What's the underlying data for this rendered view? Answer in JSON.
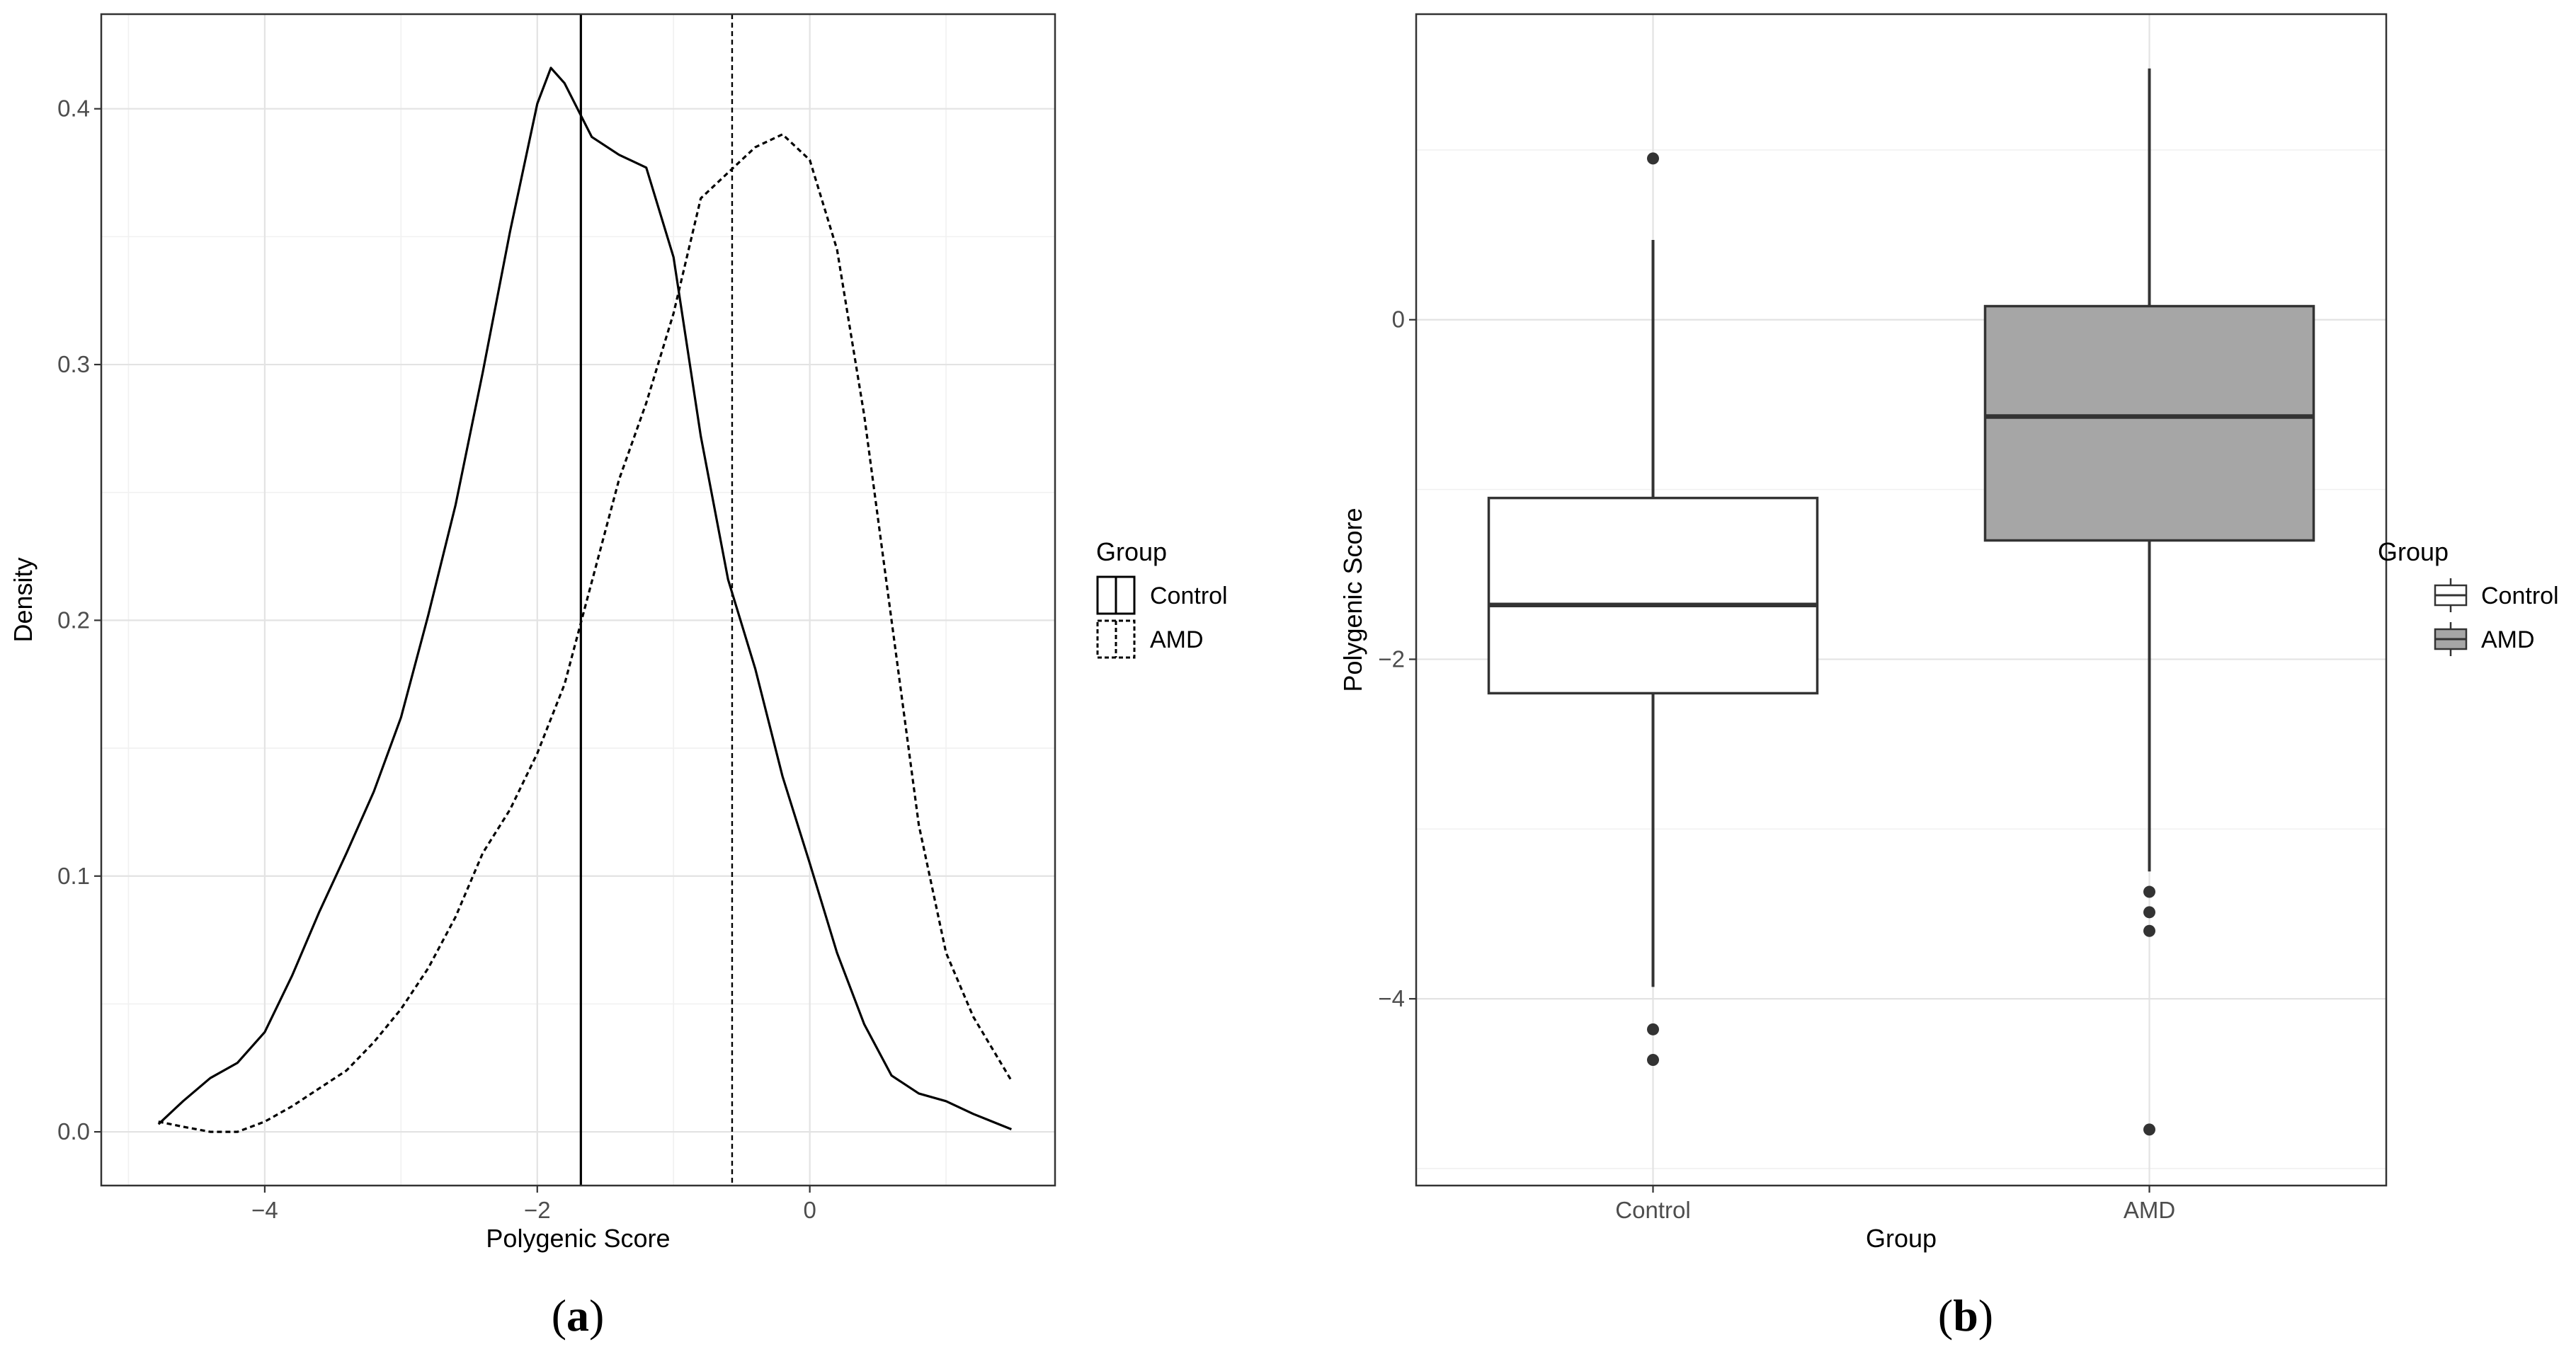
{
  "chart_data": [
    {
      "panel": "a",
      "type": "line",
      "caption_label": "a",
      "caption_open": "(",
      "caption_close": ")",
      "xlabel": "Polygenic Score",
      "ylabel": "Density",
      "xlim": [
        -5.2,
        1.8
      ],
      "ylim": [
        -0.021,
        0.437
      ],
      "x_ticks": [
        -4,
        -2,
        0
      ],
      "x_tick_labels": [
        "−4",
        "−2",
        "0"
      ],
      "y_ticks": [
        0.0,
        0.1,
        0.2,
        0.3,
        0.4
      ],
      "y_tick_labels": [
        "0.0",
        "0.1",
        "0.2",
        "0.3",
        "0.4"
      ],
      "grid": true,
      "legend": {
        "title": "Group",
        "placement": "right",
        "entries": [
          "Control",
          "AMD"
        ]
      },
      "series": [
        {
          "name": "Control",
          "linestyle": "solid",
          "mean": -1.68,
          "x": [
            -4.78,
            -4.6,
            -4.4,
            -4.2,
            -4.0,
            -3.8,
            -3.6,
            -3.4,
            -3.2,
            -3.0,
            -2.8,
            -2.6,
            -2.4,
            -2.2,
            -2.0,
            -1.9,
            -1.8,
            -1.6,
            -1.4,
            -1.2,
            -1.0,
            -0.8,
            -0.6,
            -0.4,
            -0.2,
            0.0,
            0.2,
            0.4,
            0.6,
            0.8,
            1.0,
            1.2,
            1.48
          ],
          "values": [
            0.003,
            0.012,
            0.021,
            0.027,
            0.039,
            0.061,
            0.086,
            0.109,
            0.133,
            0.162,
            0.202,
            0.245,
            0.297,
            0.352,
            0.402,
            0.416,
            0.41,
            0.389,
            0.382,
            0.377,
            0.342,
            0.272,
            0.216,
            0.181,
            0.139,
            0.105,
            0.07,
            0.042,
            0.022,
            0.015,
            0.012,
            0.007,
            0.001
          ]
        },
        {
          "name": "AMD",
          "linestyle": "dashed",
          "mean": -0.57,
          "x": [
            -4.78,
            -4.6,
            -4.4,
            -4.2,
            -4.0,
            -3.8,
            -3.6,
            -3.4,
            -3.2,
            -3.0,
            -2.8,
            -2.6,
            -2.4,
            -2.2,
            -2.0,
            -1.8,
            -1.6,
            -1.4,
            -1.2,
            -1.0,
            -0.8,
            -0.6,
            -0.4,
            -0.2,
            0.0,
            0.2,
            0.4,
            0.6,
            0.8,
            1.0,
            1.2,
            1.48
          ],
          "values": [
            0.004,
            0.002,
            0.0,
            0.0,
            0.004,
            0.01,
            0.017,
            0.024,
            0.035,
            0.048,
            0.064,
            0.084,
            0.109,
            0.126,
            0.148,
            0.175,
            0.215,
            0.255,
            0.285,
            0.32,
            0.365,
            0.375,
            0.385,
            0.39,
            0.38,
            0.345,
            0.28,
            0.2,
            0.12,
            0.07,
            0.045,
            0.02
          ]
        }
      ]
    },
    {
      "panel": "b",
      "type": "box",
      "caption_label": "b",
      "caption_open": "(",
      "caption_close": ")",
      "xlabel": "Group",
      "ylabel": "Polygenic Score",
      "categories": [
        "Control",
        "AMD"
      ],
      "ylim": [
        -5.1,
        1.8
      ],
      "y_ticks": [
        -4,
        -2,
        0
      ],
      "y_tick_labels": [
        "−4",
        "−2",
        "0"
      ],
      "grid": true,
      "legend": {
        "title": "Group",
        "placement": "right",
        "entries": [
          "Control",
          "AMD"
        ]
      },
      "series": [
        {
          "name": "Control",
          "fill": "#ffffff",
          "whisker_low": -3.93,
          "q1": -2.2,
          "median": -1.68,
          "q3": -1.05,
          "whisker_high": 0.47,
          "outliers": [
            0.95,
            -4.18,
            -4.36
          ]
        },
        {
          "name": "AMD",
          "fill": "#a6a6a6",
          "whisker_low": -3.25,
          "q1": -1.3,
          "median": -0.57,
          "q3": 0.08,
          "whisker_high": 1.48,
          "outliers": [
            -3.37,
            -3.49,
            -3.6,
            -4.77
          ]
        }
      ]
    }
  ]
}
